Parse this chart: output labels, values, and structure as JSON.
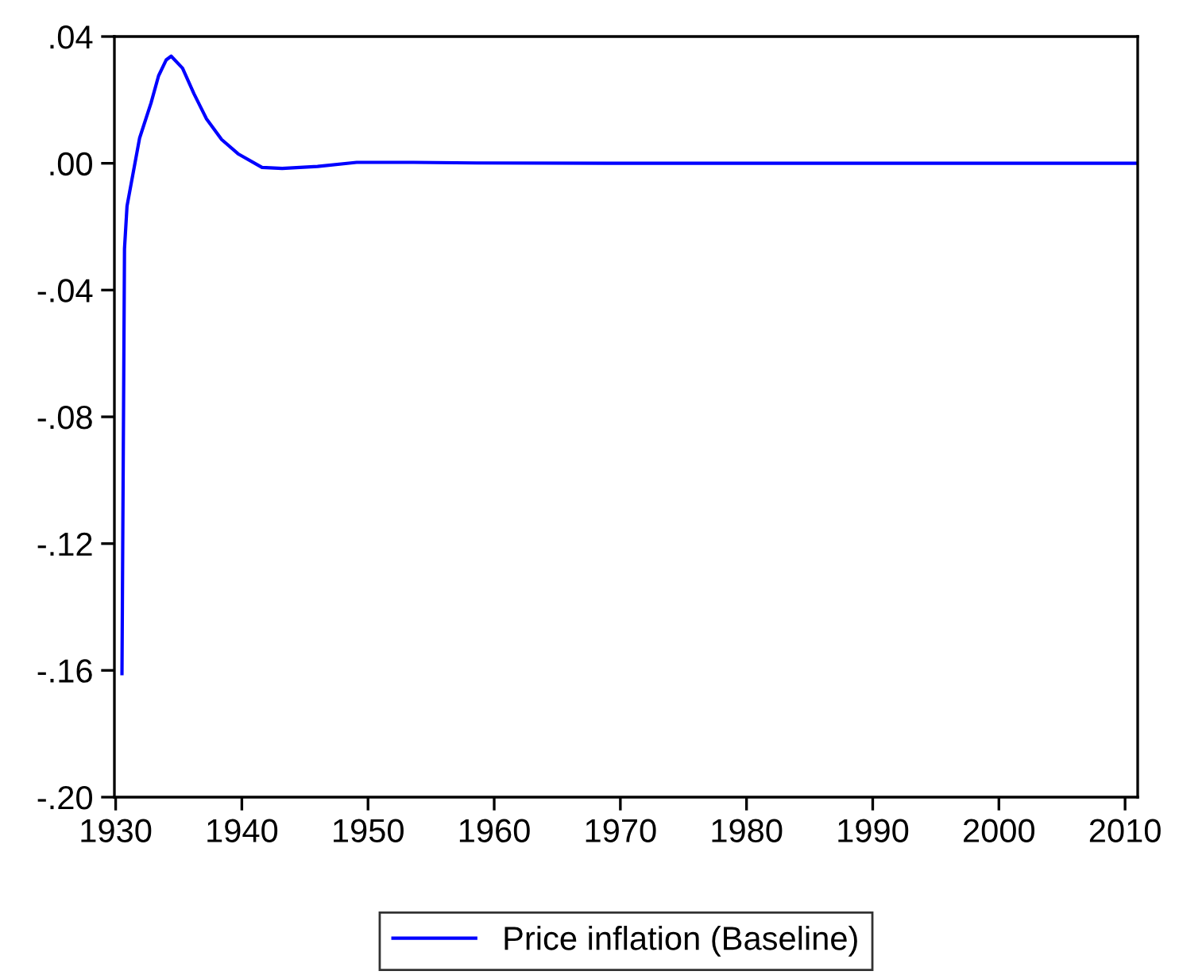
{
  "chart_data": {
    "type": "line",
    "x": [
      1930.5,
      1930.7,
      1930.9,
      1931.9,
      1932.8,
      1933.4,
      1934.0,
      1934.4,
      1935.3,
      1936.2,
      1937.2,
      1938.4,
      1939.7,
      1941.6,
      1943.2,
      1946.0,
      1949.1,
      1953.6,
      1958.6,
      1971.2,
      2011
    ],
    "series": [
      {
        "name": "Price inflation (Baseline)",
        "color": "#0000ff",
        "values": [
          -0.161,
          -0.027,
          -0.0135,
          0.008,
          0.019,
          0.0276,
          0.0326,
          0.0338,
          0.03,
          0.022,
          0.014,
          0.0075,
          0.003,
          -0.0013,
          -0.0016,
          -0.001,
          0.0003,
          0.0003,
          0.0001,
          0.0,
          0.0
        ]
      }
    ],
    "xlim": [
      1929.9,
      2011
    ],
    "xticks": [
      1930,
      1940,
      1950,
      1960,
      1970,
      1980,
      1990,
      2000,
      2010
    ],
    "ylim": [
      -0.2,
      0.04
    ],
    "yticks": [
      {
        "value": 0.04,
        "label": ".04"
      },
      {
        "value": 0.0,
        "label": ".00"
      },
      {
        "value": -0.04,
        "label": "-.04"
      },
      {
        "value": -0.08,
        "label": "-.08"
      },
      {
        "value": -0.12,
        "label": "-.12"
      },
      {
        "value": -0.16,
        "label": "-.16"
      },
      {
        "value": -0.2,
        "label": "-.20"
      }
    ],
    "grid": false,
    "legend": "bottom",
    "marker": "none",
    "line_style": "solid"
  }
}
